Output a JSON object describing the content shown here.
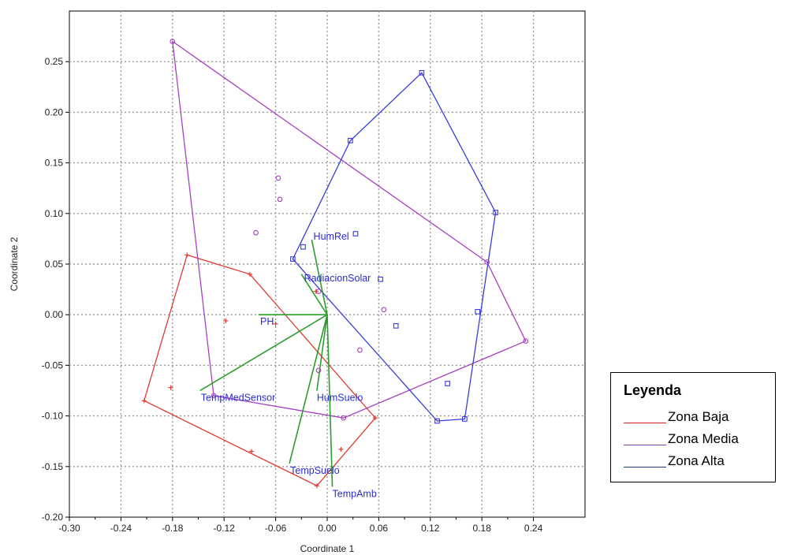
{
  "chart_data": {
    "type": "scatter",
    "title": "",
    "xlabel": "Coordinate 1",
    "ylabel": "Coordinate 2",
    "xlim": [
      -0.3,
      0.3
    ],
    "ylim": [
      -0.2,
      0.3
    ],
    "x_ticks": [
      -0.3,
      -0.24,
      -0.18,
      -0.12,
      -0.06,
      0.0,
      0.06,
      0.12,
      0.18,
      0.24
    ],
    "x_tick_labels": [
      "-0.30",
      "-0.24",
      "-0.18",
      "-0.12",
      "-0.06",
      "0.00",
      "0.06",
      "0.12",
      "0.18",
      "0.24"
    ],
    "y_ticks": [
      -0.2,
      -0.15,
      -0.1,
      -0.05,
      0.0,
      0.05,
      0.1,
      0.15,
      0.2,
      0.25
    ],
    "y_tick_labels": [
      "-0.20",
      "-0.15",
      "-0.10",
      "-0.05",
      "0.00",
      "0.05",
      "0.10",
      "0.15",
      "0.20",
      "0.25"
    ],
    "grid": true,
    "series": [
      {
        "name": "Zona Baja",
        "color": "#e03c31",
        "marker": "plus",
        "points": [
          [
            -0.163,
            0.059
          ],
          [
            -0.09,
            0.04
          ],
          [
            -0.118,
            -0.006
          ],
          [
            -0.06,
            -0.009
          ],
          [
            -0.182,
            -0.072
          ],
          [
            -0.213,
            -0.085
          ],
          [
            -0.088,
            -0.135
          ],
          [
            0.016,
            -0.133
          ],
          [
            -0.012,
            -0.169
          ],
          [
            0.056,
            -0.102
          ],
          [
            -0.013,
            0.023
          ]
        ],
        "hull": [
          [
            -0.163,
            0.059
          ],
          [
            -0.09,
            0.04
          ],
          [
            0.056,
            -0.102
          ],
          [
            -0.012,
            -0.169
          ],
          [
            -0.213,
            -0.085
          ]
        ]
      },
      {
        "name": "Zona Media",
        "color": "#a640c0",
        "marker": "circle",
        "points": [
          [
            -0.18,
            0.27
          ],
          [
            -0.057,
            0.135
          ],
          [
            -0.055,
            0.114
          ],
          [
            -0.083,
            0.081
          ],
          [
            -0.01,
            0.023
          ],
          [
            0.066,
            0.005
          ],
          [
            0.038,
            -0.035
          ],
          [
            -0.01,
            -0.055
          ],
          [
            0.019,
            -0.102
          ],
          [
            -0.132,
            -0.08
          ],
          [
            0.186,
            0.052
          ],
          [
            0.231,
            -0.026
          ]
        ],
        "hull": [
          [
            -0.18,
            0.27
          ],
          [
            0.186,
            0.052
          ],
          [
            0.231,
            -0.026
          ],
          [
            0.019,
            -0.102
          ],
          [
            -0.132,
            -0.08
          ]
        ]
      },
      {
        "name": "Zona Alta",
        "color": "#3b3bdb",
        "marker": "square",
        "points": [
          [
            0.11,
            0.239
          ],
          [
            0.027,
            0.172
          ],
          [
            0.196,
            0.101
          ],
          [
            -0.028,
            0.067
          ],
          [
            -0.04,
            0.055
          ],
          [
            0.033,
            0.08
          ],
          [
            0.062,
            0.035
          ],
          [
            0.08,
            -0.011
          ],
          [
            0.175,
            0.003
          ],
          [
            0.14,
            -0.068
          ],
          [
            0.128,
            -0.105
          ],
          [
            0.16,
            -0.103
          ]
        ],
        "hull": [
          [
            0.11,
            0.239
          ],
          [
            0.196,
            0.101
          ],
          [
            0.16,
            -0.103
          ],
          [
            0.128,
            -0.105
          ],
          [
            -0.04,
            0.055
          ],
          [
            0.027,
            0.172
          ]
        ]
      }
    ],
    "biplot_vectors": [
      {
        "name": "HumRel",
        "x": -0.018,
        "y": 0.074
      },
      {
        "name": "RadiacionSolar",
        "x": -0.03,
        "y": 0.04
      },
      {
        "name": "PH",
        "x": -0.08,
        "y": 0.0
      },
      {
        "name": "TempMedSensor",
        "x": -0.148,
        "y": -0.075
      },
      {
        "name": "HumSuelo",
        "x": -0.012,
        "y": -0.075
      },
      {
        "name": "TempSuelo",
        "x": -0.044,
        "y": -0.147
      },
      {
        "name": "TempAmb",
        "x": 0.006,
        "y": -0.17
      }
    ],
    "biplot_color": "#2a9d2a",
    "biplot_label_color": "#2b2bd8",
    "legend": {
      "title": "Leyenda",
      "position": "right",
      "items": [
        {
          "label": "Zona Baja",
          "color": "#d61f1f"
        },
        {
          "label": "Zona Media",
          "color": "#7a3fb0"
        },
        {
          "label": "Zona Alta",
          "color": "#1f3a7a"
        }
      ]
    }
  }
}
